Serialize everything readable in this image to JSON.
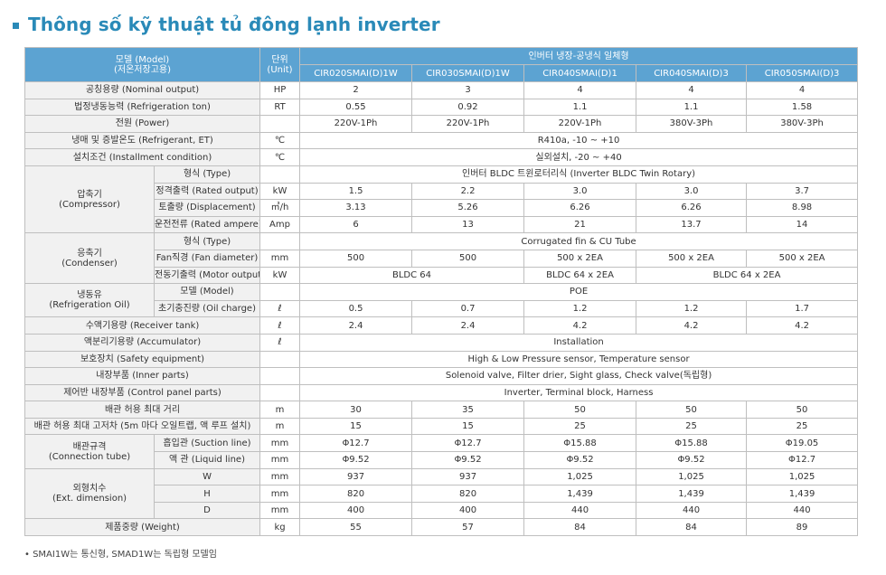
{
  "title": "Thông số kỹ thuật tủ đông lạnh inverter",
  "header": {
    "model_col": [
      "모델 (Model)",
      "(저온저장고용)"
    ],
    "unit_col": [
      "단위",
      "(Unit)"
    ],
    "group": "인버터 냉장-공냉식 일체형",
    "models": [
      "CIR020SMAI(D)1W",
      "CIR030SMAI(D)1W",
      "CIR040SMAI(D)1",
      "CIR040SMAI(D)3",
      "CIR050SMAI(D)3"
    ]
  },
  "rows": {
    "nominal": {
      "label": "공칭용량 (Nominal output)",
      "unit": "HP",
      "v": [
        "2",
        "3",
        "4",
        "4",
        "4"
      ]
    },
    "refton": {
      "label": "법정냉동능력 (Refrigeration ton)",
      "unit": "RT",
      "v": [
        "0.55",
        "0.92",
        "1.1",
        "1.1",
        "1.58"
      ]
    },
    "power": {
      "label": "전원 (Power)",
      "unit": "",
      "v": [
        "220V-1Ph",
        "220V-1Ph",
        "220V-1Ph",
        "380V-3Ph",
        "380V-3Ph"
      ]
    },
    "refrigerant": {
      "label": "냉매 및 증발온도 (Refrigerant, ET)",
      "unit": "℃",
      "all": "R410a, -10 ~ +10"
    },
    "install": {
      "label": "설치조건 (Installment condition)",
      "unit": "℃",
      "all": "실외설치, -20 ~ +40"
    },
    "compressor": {
      "group": [
        "압축기",
        "(Compressor)"
      ],
      "type": {
        "label": "형식 (Type)",
        "all": "인버터 BLDC 트윈로터리식 (Inverter BLDC Twin Rotary)"
      },
      "rated": {
        "label": "정격출력 (Rated output)",
        "unit": "kW",
        "v": [
          "1.5",
          "2.2",
          "3.0",
          "3.0",
          "3.7"
        ]
      },
      "disp": {
        "label": "토출량 (Displacement)",
        "unit": "㎥/h",
        "v": [
          "3.13",
          "5.26",
          "6.26",
          "6.26",
          "8.98"
        ]
      },
      "amp": {
        "label": "운전전류 (Rated ampere)",
        "unit": "Amp",
        "v": [
          "6",
          "13",
          "21",
          "13.7",
          "14"
        ]
      }
    },
    "condenser": {
      "group": [
        "응축기",
        "(Condenser)"
      ],
      "type": {
        "label": "형식 (Type)",
        "all": "Corrugated fin & CU Tube"
      },
      "fan": {
        "label": "Fan직경 (Fan diameter)",
        "unit": "mm",
        "v": [
          "500",
          "500",
          "500 x 2EA",
          "500 x 2EA",
          "500 x 2EA"
        ]
      },
      "motor": {
        "label": "전동기출력 (Motor output)",
        "unit": "kW",
        "a": "BLDC 64",
        "b": "BLDC 64 x 2EA",
        "c": "BLDC 64 x 2EA"
      }
    },
    "oil": {
      "group": [
        "냉동유",
        "(Refrigeration Oil)"
      ],
      "model": {
        "label": "모델 (Model)",
        "all": "POE"
      },
      "charge": {
        "label": "초기충진량 (Oil charge)",
        "unit": "ℓ",
        "v": [
          "0.5",
          "0.7",
          "1.2",
          "1.2",
          "1.7"
        ]
      }
    },
    "receiver": {
      "label": "수액기용량 (Receiver tank)",
      "unit": "ℓ",
      "v": [
        "2.4",
        "2.4",
        "4.2",
        "4.2",
        "4.2"
      ]
    },
    "accum": {
      "label": "액분리기용량 (Accumulator)",
      "unit": "ℓ",
      "all": "Installation"
    },
    "safety": {
      "label": "보호장치 (Safety equipment)",
      "all": "High & Low Pressure sensor, Temperature sensor"
    },
    "inner": {
      "label": "내장부품 (Inner parts)",
      "all": "Solenoid valve, Filter drier, Sight glass, Check valve(독립형)"
    },
    "control": {
      "label": "제어반 내장부품 (Control panel parts)",
      "all": "Inverter, Terminal block, Harness"
    },
    "pipemax": {
      "label": "배관 허용 최대 거리",
      "unit": "m",
      "v": [
        "30",
        "35",
        "50",
        "50",
        "50"
      ]
    },
    "pipeheight": {
      "label": "배관 허용 최대 고저차 (5m 마다 오일트랩, 액 루프 설치)",
      "unit": "m",
      "v": [
        "15",
        "15",
        "25",
        "25",
        "25"
      ]
    },
    "tube": {
      "group": [
        "배관규격",
        "(Connection tube)"
      ],
      "suction": {
        "label": "흡입관 (Suction line)",
        "unit": "mm",
        "v": [
          "Φ12.7",
          "Φ12.7",
          "Φ15.88",
          "Φ15.88",
          "Φ19.05"
        ]
      },
      "liquid": {
        "label": "액  관 (Liquid line)",
        "unit": "mm",
        "v": [
          "Φ9.52",
          "Φ9.52",
          "Φ9.52",
          "Φ9.52",
          "Φ12.7"
        ]
      }
    },
    "dim": {
      "group": [
        "외형치수",
        "(Ext. dimension)"
      ],
      "w": {
        "label": "W",
        "unit": "mm",
        "v": [
          "937",
          "937",
          "1,025",
          "1,025",
          "1,025"
        ]
      },
      "h": {
        "label": "H",
        "unit": "mm",
        "v": [
          "820",
          "820",
          "1,439",
          "1,439",
          "1,439"
        ]
      },
      "d": {
        "label": "D",
        "unit": "mm",
        "v": [
          "400",
          "400",
          "440",
          "440",
          "440"
        ]
      }
    },
    "weight": {
      "label": "제품중량 (Weight)",
      "unit": "kg",
      "v": [
        "55",
        "57",
        "84",
        "84",
        "89"
      ]
    }
  },
  "footnote": "• SMAI1W는 통신형, SMAD1W는 독립형 모델임"
}
